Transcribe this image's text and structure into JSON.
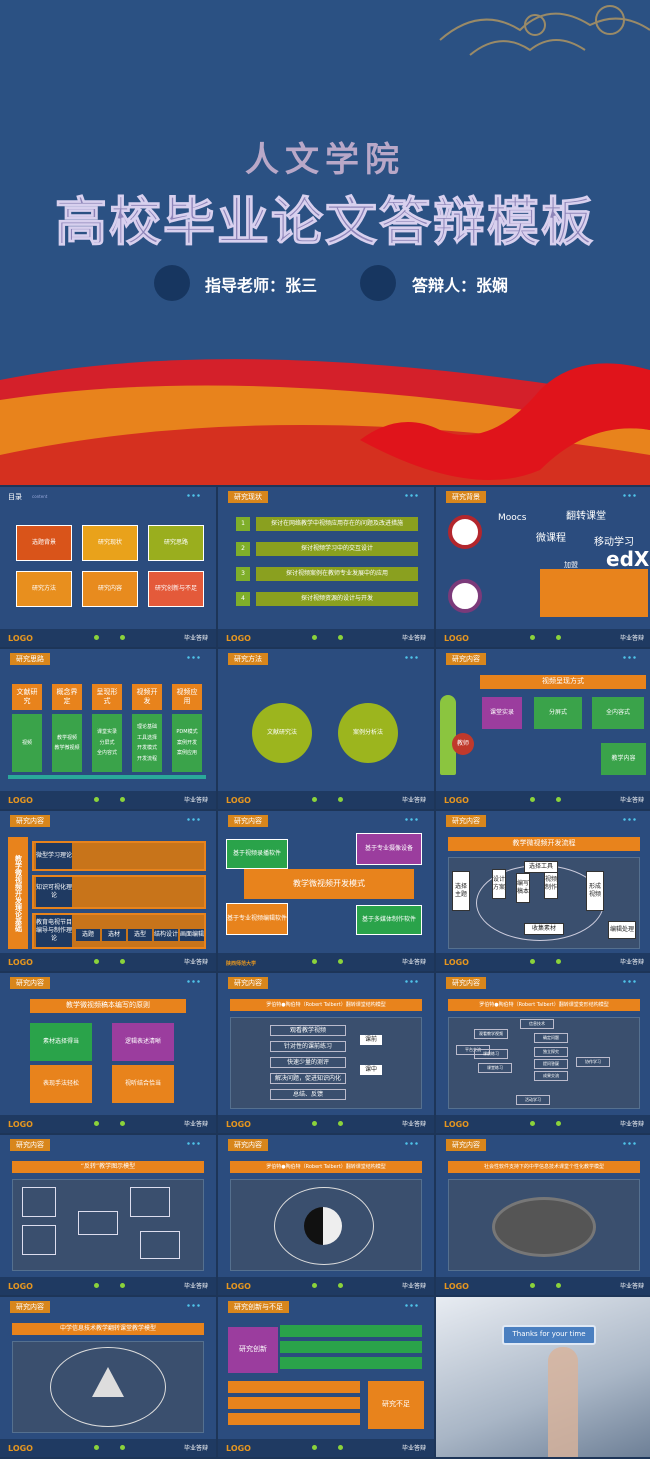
{
  "header": {
    "college": "人文学院",
    "title": "高校毕业论文答辩模板",
    "advisor": "指导老师：张三",
    "defender": "答辩人：张娴"
  },
  "footer": {
    "logo": "LOGO",
    "label": "毕业答辩"
  },
  "slides": [
    {
      "tag": "目录",
      "tag_en": "content",
      "items": [
        "选题背景",
        "研究现状",
        "研究思路",
        "研究方法",
        "研究内容",
        "研究创新与不足"
      ]
    },
    {
      "tag": "研究现状",
      "numbers": [
        "1",
        "2",
        "3",
        "4"
      ],
      "items": [
        "探讨在网络教学中视频应用存在的问题及改进措施",
        "探讨视频学习中的交互设计",
        "探讨视频案例在教师专业发展中的应用",
        "探讨视频资源的设计与开发"
      ]
    },
    {
      "tag": "研究背景",
      "labels": [
        "Moocs",
        "翻转课堂",
        "微课程",
        "移动学习",
        "加盟",
        "edX"
      ]
    },
    {
      "tag": "研究思路",
      "columns": [
        {
          "title": "文献研究",
          "items": [
            "视频"
          ]
        },
        {
          "title": "概念界定",
          "items": [
            "教学视频",
            "教学微视频"
          ]
        },
        {
          "title": "呈现形式",
          "items": [
            "课堂实录",
            "分屏式",
            "全内容式"
          ]
        },
        {
          "title": "视频开发",
          "items": [
            "理论基础",
            "工具选择",
            "开发模式",
            "开发流程"
          ]
        },
        {
          "title": "视频应用",
          "items": [
            "PDM模式",
            "案例开发",
            "案例应用"
          ]
        }
      ]
    },
    {
      "tag": "研究方法",
      "items": [
        "文献研究法",
        "案例分析法"
      ]
    },
    {
      "tag": "研究内容",
      "heading": "视频呈现方式",
      "items": [
        "课堂实录",
        "分屏式",
        "全内容式",
        "教学内容"
      ],
      "figure": "教师"
    },
    {
      "tag": "研究内容",
      "side": "教学微视频开发理论基础",
      "rows": [
        "微型学习理论",
        "知识可视化理论",
        "教育电视节目编导与制作理论"
      ],
      "steps": [
        "选题",
        "选材",
        "选型",
        "结构设计",
        "画面编辑"
      ]
    },
    {
      "tag": "研究内容",
      "center": "教学微视频开发模式",
      "items": [
        "基于视频录播软件",
        "基于专业摄像设备",
        "基于专业视频编辑软件",
        "基于多媒体制作软件"
      ],
      "school": "陕西师范大学"
    },
    {
      "tag": "研究内容",
      "heading": "教学微视频开发流程",
      "items": [
        "选择主题",
        "设计方案",
        "编写稿本",
        "视频制作",
        "形成视频",
        "选择工具",
        "收集素材",
        "编辑处理"
      ]
    },
    {
      "tag": "研究内容",
      "heading": "教学微视频稿本编写的原则",
      "items": [
        "素材选择得当",
        "逻辑表述清晰",
        "表现手法轻松",
        "视听结合恰当"
      ]
    },
    {
      "tag": "研究内容",
      "heading": "罗伯特●陶伯特（Robert Talbert）翻转课堂结构模型",
      "items": [
        "观看教学视频",
        "针对性的课前练习",
        "快速少量的测评",
        "解决问题，促进知识内化",
        "总结、反馈"
      ],
      "phases": [
        "课前",
        "课中"
      ]
    },
    {
      "tag": "研究内容",
      "heading": "罗伯特●陶伯特（Robert Talbert）翻转课堂变形结构模型",
      "items": [
        "信息技术",
        "观看教学视频",
        "平台交流",
        "课前练习",
        "课堂练习",
        "确定问题",
        "独立探究",
        "提问答疑",
        "成果交流",
        "协作学习",
        "活动学习"
      ]
    },
    {
      "tag": "研究内容",
      "heading": "“反转”教学图示模型"
    },
    {
      "tag": "研究内容",
      "heading": "罗伯特●陶伯特（Robert Talbert）翻转课堂结构模型"
    },
    {
      "tag": "研究内容",
      "heading": "社会性软件支持下的中学信息技术课堂个性化教学模型"
    },
    {
      "tag": "研究内容",
      "heading": "中学信息技术教学翻转课堂教学模型"
    },
    {
      "tag": "研究创新与不足",
      "labels": [
        "研究创新",
        "研究不足"
      ]
    },
    {
      "text": "Thanks for your time"
    }
  ]
}
